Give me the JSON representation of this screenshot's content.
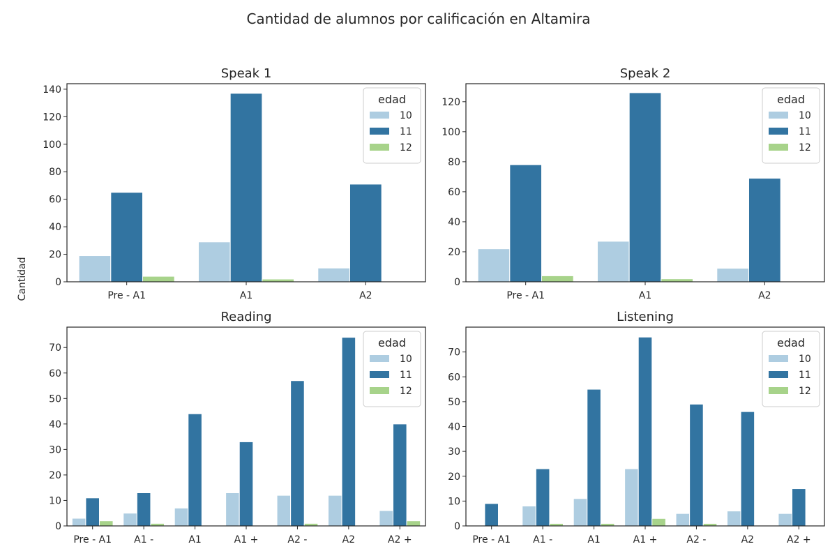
{
  "figure": {
    "title": "Cantidad de alumnos por calificación en Altamira",
    "ylabel": "Cantidad"
  },
  "colors": {
    "10": "#aecde1",
    "11": "#3274a1",
    "12": "#a7d38a"
  },
  "chart_data": [
    {
      "type": "bar",
      "title": "Speak 1",
      "categories": [
        "Pre - A1",
        "A1",
        "A2"
      ],
      "series": [
        {
          "name": "10",
          "values": [
            19,
            29,
            10
          ]
        },
        {
          "name": "11",
          "values": [
            65,
            137,
            71
          ]
        },
        {
          "name": "12",
          "values": [
            4,
            2,
            0
          ]
        }
      ],
      "ylim": [
        0,
        144
      ],
      "yticks": [
        0,
        20,
        40,
        60,
        80,
        100,
        120,
        140
      ],
      "legend": {
        "title": "edad",
        "placement": "top-right"
      }
    },
    {
      "type": "bar",
      "title": "Speak 2",
      "categories": [
        "Pre - A1",
        "A1",
        "A2"
      ],
      "series": [
        {
          "name": "10",
          "values": [
            22,
            27,
            9
          ]
        },
        {
          "name": "11",
          "values": [
            78,
            126,
            69
          ]
        },
        {
          "name": "12",
          "values": [
            4,
            2,
            0
          ]
        }
      ],
      "ylim": [
        0,
        132
      ],
      "yticks": [
        0,
        20,
        40,
        60,
        80,
        100,
        120
      ],
      "legend": {
        "title": "edad",
        "placement": "top-right"
      }
    },
    {
      "type": "bar",
      "title": "Reading",
      "categories": [
        "Pre - A1",
        "A1 -",
        "A1",
        "A1 +",
        "A2 -",
        "A2",
        "A2 +"
      ],
      "series": [
        {
          "name": "10",
          "values": [
            3,
            5,
            7,
            13,
            12,
            12,
            6
          ]
        },
        {
          "name": "11",
          "values": [
            11,
            13,
            44,
            33,
            57,
            74,
            40
          ]
        },
        {
          "name": "12",
          "values": [
            2,
            1,
            0,
            0,
            1,
            0,
            2
          ]
        }
      ],
      "ylim": [
        0,
        78
      ],
      "yticks": [
        0,
        10,
        20,
        30,
        40,
        50,
        60,
        70
      ],
      "legend": {
        "title": "edad",
        "placement": "top-right"
      }
    },
    {
      "type": "bar",
      "title": "Listening",
      "categories": [
        "Pre - A1",
        "A1 -",
        "A1",
        "A1 +",
        "A2 -",
        "A2",
        "A2 +"
      ],
      "series": [
        {
          "name": "10",
          "values": [
            0,
            8,
            11,
            23,
            5,
            6,
            5
          ]
        },
        {
          "name": "11",
          "values": [
            9,
            23,
            55,
            76,
            49,
            46,
            15
          ]
        },
        {
          "name": "12",
          "values": [
            0,
            1,
            1,
            3,
            1,
            0,
            0
          ]
        }
      ],
      "ylim": [
        0,
        80
      ],
      "yticks": [
        0,
        10,
        20,
        30,
        40,
        50,
        60,
        70
      ],
      "legend": {
        "title": "edad",
        "placement": "top-right"
      }
    }
  ]
}
